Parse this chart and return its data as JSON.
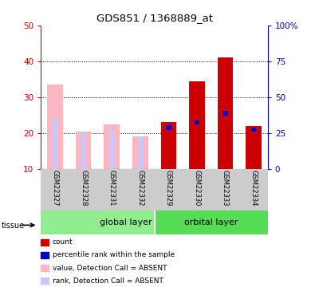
{
  "title": "GDS851 / 1368889_at",
  "samples": [
    "GSM22327",
    "GSM22328",
    "GSM22331",
    "GSM22332",
    "GSM22329",
    "GSM22330",
    "GSM22333",
    "GSM22334"
  ],
  "absent_value": [
    33.5,
    20.5,
    22.5,
    19.0,
    null,
    null,
    null,
    null
  ],
  "absent_rank": [
    24.5,
    20.5,
    20.8,
    19.0,
    null,
    null,
    null,
    null
  ],
  "present_value": [
    null,
    null,
    null,
    null,
    23.0,
    34.5,
    41.0,
    22.0
  ],
  "present_rank": [
    null,
    null,
    null,
    null,
    21.5,
    23.0,
    25.5,
    21.0
  ],
  "ylim_left": [
    10,
    50
  ],
  "ylim_right": [
    0,
    100
  ],
  "yticks_left": [
    10,
    20,
    30,
    40,
    50
  ],
  "yticks_right": [
    0,
    25,
    50,
    75,
    100
  ],
  "ytick_right_labels": [
    "0",
    "25",
    "50",
    "75",
    "100%"
  ],
  "color_absent_value": "#ffb6c1",
  "color_absent_rank": "#c8c8ff",
  "color_present_value": "#cc0000",
  "color_present_rank": "#0000cc",
  "bar_width": 0.55,
  "thin_bar_width": 0.18,
  "group_split": 3.5,
  "group1_label": "global layer",
  "group2_label": "orbital layer",
  "group1_color": "#90ee90",
  "group2_color": "#55dd55",
  "xtick_bg_color": "#cccccc",
  "legend_items": [
    {
      "color": "#cc0000",
      "label": "count"
    },
    {
      "color": "#0000cc",
      "label": "percentile rank within the sample"
    },
    {
      "color": "#ffb6c1",
      "label": "value, Detection Call = ABSENT"
    },
    {
      "color": "#c8c8ff",
      "label": "rank, Detection Call = ABSENT"
    }
  ]
}
